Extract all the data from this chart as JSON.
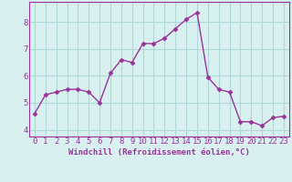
{
  "x": [
    0,
    1,
    2,
    3,
    4,
    5,
    6,
    7,
    8,
    9,
    10,
    11,
    12,
    13,
    14,
    15,
    16,
    17,
    18,
    19,
    20,
    21,
    22,
    23
  ],
  "y": [
    4.6,
    5.3,
    5.4,
    5.5,
    5.5,
    5.4,
    5.0,
    6.1,
    6.6,
    6.5,
    7.2,
    7.2,
    7.4,
    7.75,
    8.1,
    8.35,
    5.95,
    5.5,
    5.4,
    4.3,
    4.3,
    4.15,
    4.45,
    4.5
  ],
  "line_color": "#993399",
  "marker": "D",
  "marker_size": 2.5,
  "background_color": "#d8f0f0",
  "grid_color": "#b0d8d8",
  "xlabel": "Windchill (Refroidissement éolien,°C)",
  "xlim": [
    -0.5,
    23.5
  ],
  "ylim": [
    3.75,
    8.75
  ],
  "yticks": [
    4,
    5,
    6,
    7,
    8
  ],
  "xticks": [
    0,
    1,
    2,
    3,
    4,
    5,
    6,
    7,
    8,
    9,
    10,
    11,
    12,
    13,
    14,
    15,
    16,
    17,
    18,
    19,
    20,
    21,
    22,
    23
  ],
  "xlabel_fontsize": 6.5,
  "tick_fontsize": 6.5,
  "line_width": 1.0,
  "spine_color": "#993399"
}
